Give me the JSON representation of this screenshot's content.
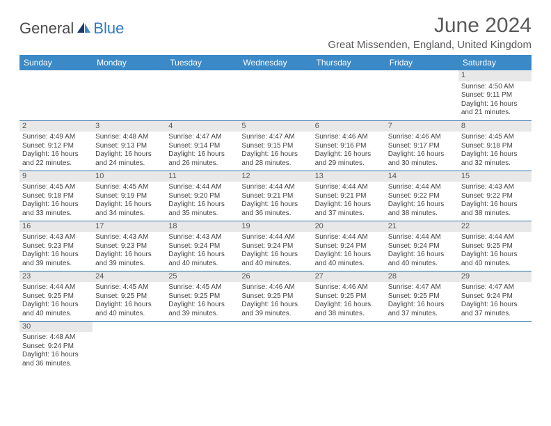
{
  "brand": {
    "part1": "General",
    "part2": "Blue"
  },
  "title": "June 2024",
  "location": "Great Missenden, England, United Kingdom",
  "colors": {
    "header_bg": "#3b89c7",
    "header_text": "#ffffff",
    "daynum_bg": "#e8e8e8",
    "cell_border": "#2f6fa8",
    "brand_blue": "#2f7abf",
    "text": "#444444",
    "title_color": "#5a5a5a"
  },
  "dayHeaders": [
    "Sunday",
    "Monday",
    "Tuesday",
    "Wednesday",
    "Thursday",
    "Friday",
    "Saturday"
  ],
  "weeks": [
    [
      null,
      null,
      null,
      null,
      null,
      null,
      {
        "n": "1",
        "sunrise": "4:50 AM",
        "sunset": "9:11 PM",
        "dl1": "16 hours",
        "dl2": "21 minutes."
      }
    ],
    [
      {
        "n": "2",
        "sunrise": "4:49 AM",
        "sunset": "9:12 PM",
        "dl1": "16 hours",
        "dl2": "22 minutes."
      },
      {
        "n": "3",
        "sunrise": "4:48 AM",
        "sunset": "9:13 PM",
        "dl1": "16 hours",
        "dl2": "24 minutes."
      },
      {
        "n": "4",
        "sunrise": "4:47 AM",
        "sunset": "9:14 PM",
        "dl1": "16 hours",
        "dl2": "26 minutes."
      },
      {
        "n": "5",
        "sunrise": "4:47 AM",
        "sunset": "9:15 PM",
        "dl1": "16 hours",
        "dl2": "28 minutes."
      },
      {
        "n": "6",
        "sunrise": "4:46 AM",
        "sunset": "9:16 PM",
        "dl1": "16 hours",
        "dl2": "29 minutes."
      },
      {
        "n": "7",
        "sunrise": "4:46 AM",
        "sunset": "9:17 PM",
        "dl1": "16 hours",
        "dl2": "30 minutes."
      },
      {
        "n": "8",
        "sunrise": "4:45 AM",
        "sunset": "9:18 PM",
        "dl1": "16 hours",
        "dl2": "32 minutes."
      }
    ],
    [
      {
        "n": "9",
        "sunrise": "4:45 AM",
        "sunset": "9:18 PM",
        "dl1": "16 hours",
        "dl2": "33 minutes."
      },
      {
        "n": "10",
        "sunrise": "4:45 AM",
        "sunset": "9:19 PM",
        "dl1": "16 hours",
        "dl2": "34 minutes."
      },
      {
        "n": "11",
        "sunrise": "4:44 AM",
        "sunset": "9:20 PM",
        "dl1": "16 hours",
        "dl2": "35 minutes."
      },
      {
        "n": "12",
        "sunrise": "4:44 AM",
        "sunset": "9:21 PM",
        "dl1": "16 hours",
        "dl2": "36 minutes."
      },
      {
        "n": "13",
        "sunrise": "4:44 AM",
        "sunset": "9:21 PM",
        "dl1": "16 hours",
        "dl2": "37 minutes."
      },
      {
        "n": "14",
        "sunrise": "4:44 AM",
        "sunset": "9:22 PM",
        "dl1": "16 hours",
        "dl2": "38 minutes."
      },
      {
        "n": "15",
        "sunrise": "4:43 AM",
        "sunset": "9:22 PM",
        "dl1": "16 hours",
        "dl2": "38 minutes."
      }
    ],
    [
      {
        "n": "16",
        "sunrise": "4:43 AM",
        "sunset": "9:23 PM",
        "dl1": "16 hours",
        "dl2": "39 minutes."
      },
      {
        "n": "17",
        "sunrise": "4:43 AM",
        "sunset": "9:23 PM",
        "dl1": "16 hours",
        "dl2": "39 minutes."
      },
      {
        "n": "18",
        "sunrise": "4:43 AM",
        "sunset": "9:24 PM",
        "dl1": "16 hours",
        "dl2": "40 minutes."
      },
      {
        "n": "19",
        "sunrise": "4:44 AM",
        "sunset": "9:24 PM",
        "dl1": "16 hours",
        "dl2": "40 minutes."
      },
      {
        "n": "20",
        "sunrise": "4:44 AM",
        "sunset": "9:24 PM",
        "dl1": "16 hours",
        "dl2": "40 minutes."
      },
      {
        "n": "21",
        "sunrise": "4:44 AM",
        "sunset": "9:24 PM",
        "dl1": "16 hours",
        "dl2": "40 minutes."
      },
      {
        "n": "22",
        "sunrise": "4:44 AM",
        "sunset": "9:25 PM",
        "dl1": "16 hours",
        "dl2": "40 minutes."
      }
    ],
    [
      {
        "n": "23",
        "sunrise": "4:44 AM",
        "sunset": "9:25 PM",
        "dl1": "16 hours",
        "dl2": "40 minutes."
      },
      {
        "n": "24",
        "sunrise": "4:45 AM",
        "sunset": "9:25 PM",
        "dl1": "16 hours",
        "dl2": "40 minutes."
      },
      {
        "n": "25",
        "sunrise": "4:45 AM",
        "sunset": "9:25 PM",
        "dl1": "16 hours",
        "dl2": "39 minutes."
      },
      {
        "n": "26",
        "sunrise": "4:46 AM",
        "sunset": "9:25 PM",
        "dl1": "16 hours",
        "dl2": "39 minutes."
      },
      {
        "n": "27",
        "sunrise": "4:46 AM",
        "sunset": "9:25 PM",
        "dl1": "16 hours",
        "dl2": "38 minutes."
      },
      {
        "n": "28",
        "sunrise": "4:47 AM",
        "sunset": "9:25 PM",
        "dl1": "16 hours",
        "dl2": "37 minutes."
      },
      {
        "n": "29",
        "sunrise": "4:47 AM",
        "sunset": "9:24 PM",
        "dl1": "16 hours",
        "dl2": "37 minutes."
      }
    ],
    [
      {
        "n": "30",
        "sunrise": "4:48 AM",
        "sunset": "9:24 PM",
        "dl1": "16 hours",
        "dl2": "36 minutes."
      },
      null,
      null,
      null,
      null,
      null,
      null
    ]
  ],
  "labels": {
    "sunrise_prefix": "Sunrise: ",
    "sunset_prefix": "Sunset: ",
    "daylight_prefix": "Daylight: ",
    "and": "and "
  }
}
